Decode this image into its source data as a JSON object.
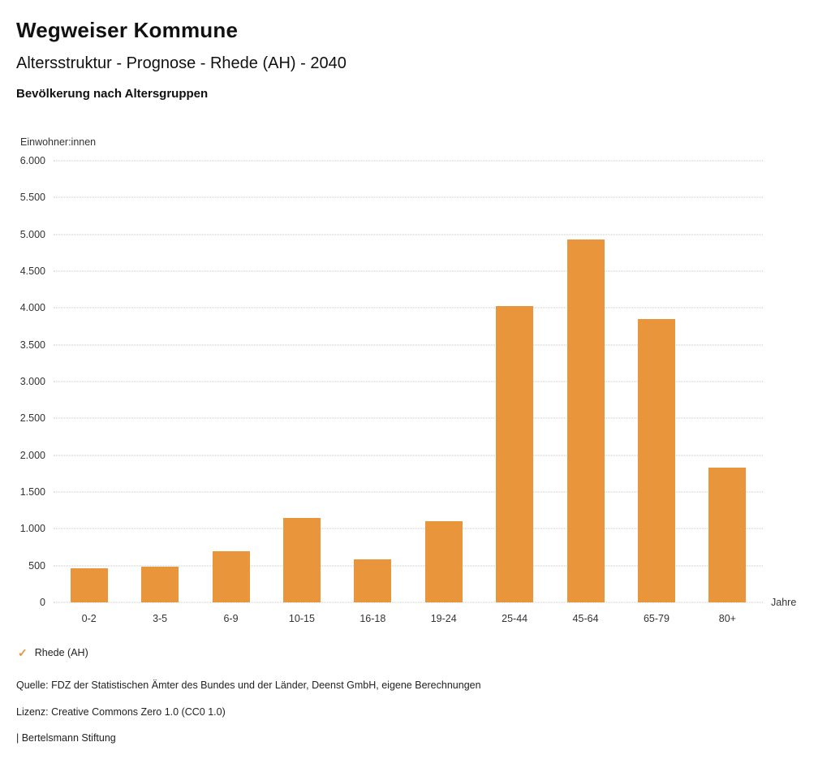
{
  "header": {
    "title": "Wegweiser Kommune",
    "subtitle": "Altersstruktur - Prognose - Rhede (AH) - 2040",
    "chart_heading": "Bevölkerung nach Altersgruppen"
  },
  "chart_data": {
    "type": "bar",
    "title": "Bevölkerung nach Altersgruppen",
    "ylabel": "Einwohner:innen",
    "xlabel": "Jahre",
    "categories": [
      "0-2",
      "3-5",
      "6-9",
      "10-15",
      "16-18",
      "19-24",
      "25-44",
      "45-64",
      "65-79",
      "80+"
    ],
    "values": [
      460,
      490,
      700,
      1150,
      590,
      1100,
      4030,
      4930,
      3850,
      1830
    ],
    "ylim": [
      0,
      6000
    ],
    "yticks": [
      0,
      500,
      1000,
      1500,
      2000,
      2500,
      3000,
      3500,
      4000,
      4500,
      5000,
      5500,
      6000
    ],
    "ytick_labels": [
      "0",
      "500",
      "1.000",
      "1.500",
      "2.000",
      "2.500",
      "3.000",
      "3.500",
      "4.000",
      "4.500",
      "5.000",
      "5.500",
      "6.000"
    ],
    "grid": true,
    "bar_color": "#E8953C",
    "legend": {
      "label": "Rhede (AH)",
      "position": "bottom-left",
      "check_icon": "✓"
    }
  },
  "footer": {
    "source": "Quelle: FDZ der Statistischen Ämter des Bundes und der Länder, Deenst GmbH, eigene Berechnungen",
    "license": "Lizenz: Creative Commons Zero 1.0 (CC0 1.0)",
    "attribution": "| Bertelsmann Stiftung"
  }
}
